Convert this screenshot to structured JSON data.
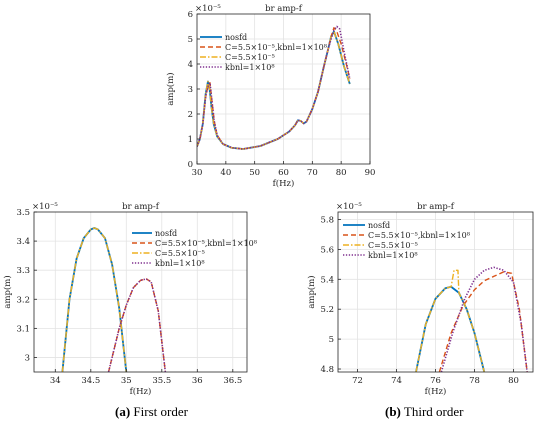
{
  "captions": [
    {
      "label": "(a)",
      "text": " First order"
    },
    {
      "label": "(b)",
      "text": " Third order"
    }
  ],
  "chart_data": [
    {
      "type": "line",
      "title": "br amp-f",
      "xlabel": "f(Hz)",
      "ylabel": "amp(m)",
      "exponent": "×10⁻⁵",
      "xlim": [
        30,
        90
      ],
      "ylim": [
        0,
        6
      ],
      "xticks": [
        30,
        40,
        50,
        60,
        70,
        80,
        90
      ],
      "yticks": [
        0,
        1,
        2,
        3,
        4,
        5,
        6
      ],
      "grid": true,
      "legend_position": "left",
      "series": [
        {
          "name": "nosfd",
          "color": "#0072BD",
          "style": "solid",
          "x": [
            30,
            31,
            32,
            33,
            33.8,
            34.3,
            35,
            35.8,
            37,
            39,
            42,
            46,
            52,
            58,
            62,
            64,
            65,
            66,
            67,
            68,
            70,
            72,
            74,
            75.5,
            76.5,
            77.5,
            79,
            81,
            83
          ],
          "y": [
            0.7,
            1.0,
            1.6,
            2.8,
            3.3,
            3.1,
            2.3,
            1.6,
            1.1,
            0.8,
            0.65,
            0.6,
            0.72,
            1.0,
            1.3,
            1.55,
            1.75,
            1.72,
            1.62,
            1.7,
            2.2,
            2.9,
            3.9,
            4.6,
            5.1,
            5.3,
            4.8,
            3.9,
            3.2
          ]
        },
        {
          "name": "C=5.5×10⁻⁵,kbnl=1×10⁸",
          "color": "#D95319",
          "style": "dashed",
          "x": [
            30,
            31,
            32,
            33,
            33.8,
            34.5,
            35.3,
            36,
            37,
            39,
            42,
            46,
            52,
            58,
            62,
            64,
            65,
            66,
            67,
            68,
            70,
            72,
            74,
            75.5,
            76.5,
            77.5,
            78.5,
            80,
            82,
            83
          ],
          "y": [
            0.7,
            1.0,
            1.6,
            2.7,
            3.1,
            3.25,
            2.4,
            1.7,
            1.15,
            0.8,
            0.65,
            0.6,
            0.72,
            1.0,
            1.3,
            1.55,
            1.75,
            1.72,
            1.62,
            1.7,
            2.2,
            2.9,
            3.9,
            4.6,
            5.1,
            5.45,
            5.3,
            4.8,
            3.9,
            3.4
          ]
        },
        {
          "name": "C=5.5×10⁻⁵",
          "color": "#EDB120",
          "style": "dashdot",
          "x": [
            30,
            31,
            32,
            33,
            33.8,
            34.3,
            35,
            35.8,
            37,
            39,
            42,
            46,
            52,
            58,
            62,
            64,
            65,
            66,
            67,
            68,
            70,
            72,
            74,
            75.5,
            76.5,
            77.5,
            79,
            81,
            83
          ],
          "y": [
            0.7,
            1.0,
            1.6,
            2.8,
            3.3,
            3.1,
            2.3,
            1.6,
            1.1,
            0.8,
            0.65,
            0.6,
            0.72,
            1.0,
            1.3,
            1.55,
            1.75,
            1.72,
            1.62,
            1.7,
            2.2,
            2.9,
            3.9,
            4.6,
            5.1,
            5.3,
            4.8,
            3.9,
            3.2
          ]
        },
        {
          "name": "kbnl=1×10⁸",
          "color": "#7E2F8E",
          "style": "dotted",
          "x": [
            30,
            31,
            32,
            33,
            33.8,
            34.5,
            35.3,
            36,
            37,
            39,
            42,
            46,
            52,
            58,
            62,
            64,
            65,
            66,
            67,
            68,
            70,
            72,
            74,
            75.5,
            76.5,
            77.5,
            78.5,
            79.5,
            81,
            83
          ],
          "y": [
            0.7,
            1.0,
            1.6,
            2.7,
            3.1,
            3.25,
            2.4,
            1.7,
            1.15,
            0.8,
            0.65,
            0.6,
            0.72,
            1.0,
            1.3,
            1.55,
            1.75,
            1.72,
            1.62,
            1.7,
            2.2,
            2.9,
            3.9,
            4.6,
            5.0,
            5.35,
            5.5,
            5.4,
            4.5,
            3.4
          ]
        }
      ]
    },
    {
      "type": "line",
      "title": "br amp-f",
      "xlabel": "f(Hz)",
      "ylabel": "amp(m)",
      "exponent": "×10⁻⁵",
      "xlim": [
        33.7,
        36.7
      ],
      "ylim": [
        2.95,
        3.5
      ],
      "xticks": [
        34,
        34.5,
        35,
        35.5,
        36,
        36.5
      ],
      "yticks": [
        3,
        3.1,
        3.2,
        3.3,
        3.4,
        3.5
      ],
      "grid": true,
      "legend_position": "top-right",
      "series": [
        {
          "name": "nosfd",
          "color": "#0072BD",
          "style": "solid",
          "x": [
            34.1,
            34.2,
            34.3,
            34.4,
            34.5,
            34.55,
            34.6,
            34.7,
            34.8,
            34.9,
            35.0
          ],
          "y": [
            2.95,
            3.2,
            3.34,
            3.41,
            3.44,
            3.445,
            3.44,
            3.41,
            3.32,
            3.17,
            2.95
          ]
        },
        {
          "name": "C=5.5×10⁻⁵,kbnl=1×10⁸",
          "color": "#D95319",
          "style": "dashed",
          "x": [
            34.75,
            34.9,
            35.0,
            35.1,
            35.2,
            35.28,
            35.35,
            35.45,
            35.55
          ],
          "y": [
            2.95,
            3.1,
            3.18,
            3.24,
            3.265,
            3.27,
            3.26,
            3.16,
            2.95
          ]
        },
        {
          "name": "C=5.5×10⁻⁵",
          "color": "#EDB120",
          "style": "dashdot",
          "x": [
            34.1,
            34.2,
            34.3,
            34.4,
            34.5,
            34.55,
            34.6,
            34.7,
            34.8,
            34.9,
            35.0
          ],
          "y": [
            2.95,
            3.2,
            3.34,
            3.41,
            3.44,
            3.445,
            3.44,
            3.41,
            3.32,
            3.17,
            2.95
          ]
        },
        {
          "name": "kbnl=1×10⁸",
          "color": "#7E2F8E",
          "style": "dotted",
          "x": [
            34.75,
            34.9,
            35.0,
            35.1,
            35.2,
            35.28,
            35.35,
            35.45,
            35.55
          ],
          "y": [
            2.95,
            3.1,
            3.18,
            3.24,
            3.265,
            3.27,
            3.26,
            3.16,
            2.95
          ]
        }
      ]
    },
    {
      "type": "line",
      "title": "br amp-f",
      "xlabel": "f(Hz)",
      "ylabel": "amp(m)",
      "exponent": "×10⁻⁵",
      "xlim": [
        71,
        81
      ],
      "ylim": [
        4.78,
        5.85
      ],
      "xticks": [
        72,
        74,
        76,
        78,
        80
      ],
      "yticks": [
        4.8,
        5,
        5.2,
        5.4,
        5.6,
        5.8
      ],
      "grid": true,
      "legend_position": "top-left",
      "series": [
        {
          "name": "nosfd",
          "color": "#0072BD",
          "style": "solid",
          "x": [
            75.0,
            75.5,
            76.0,
            76.5,
            76.8,
            77.2,
            77.6,
            78.0,
            78.5
          ],
          "y": [
            4.78,
            5.1,
            5.27,
            5.34,
            5.35,
            5.31,
            5.2,
            5.04,
            4.78
          ]
        },
        {
          "name": "C=5.5×10⁻⁵,kbnl=1×10⁸",
          "color": "#D95319",
          "style": "dashed",
          "x": [
            76.2,
            76.8,
            77.4,
            78.0,
            78.5,
            79.0,
            79.5,
            79.9,
            80.3,
            80.7
          ],
          "y": [
            4.78,
            5.04,
            5.22,
            5.33,
            5.39,
            5.42,
            5.45,
            5.44,
            5.2,
            4.78
          ]
        },
        {
          "name": "C=5.5×10⁻⁵",
          "color": "#EDB120",
          "style": "dashdot",
          "x": [
            75.0,
            75.5,
            76.0,
            76.5,
            76.8,
            76.95,
            77.0,
            77.1,
            77.15,
            77.2,
            77.6,
            78.0,
            78.5
          ],
          "y": [
            4.78,
            5.1,
            5.27,
            5.34,
            5.35,
            5.46,
            5.46,
            5.46,
            5.46,
            5.31,
            5.2,
            5.04,
            4.78
          ]
        },
        {
          "name": "kbnl=1×10⁸",
          "color": "#7E2F8E",
          "style": "dotted",
          "x": [
            76.3,
            76.9,
            77.5,
            78.0,
            78.5,
            79.0,
            79.5,
            80.0,
            80.4,
            80.7
          ],
          "y": [
            4.78,
            5.05,
            5.27,
            5.4,
            5.46,
            5.48,
            5.46,
            5.38,
            5.1,
            4.78
          ]
        }
      ]
    }
  ]
}
